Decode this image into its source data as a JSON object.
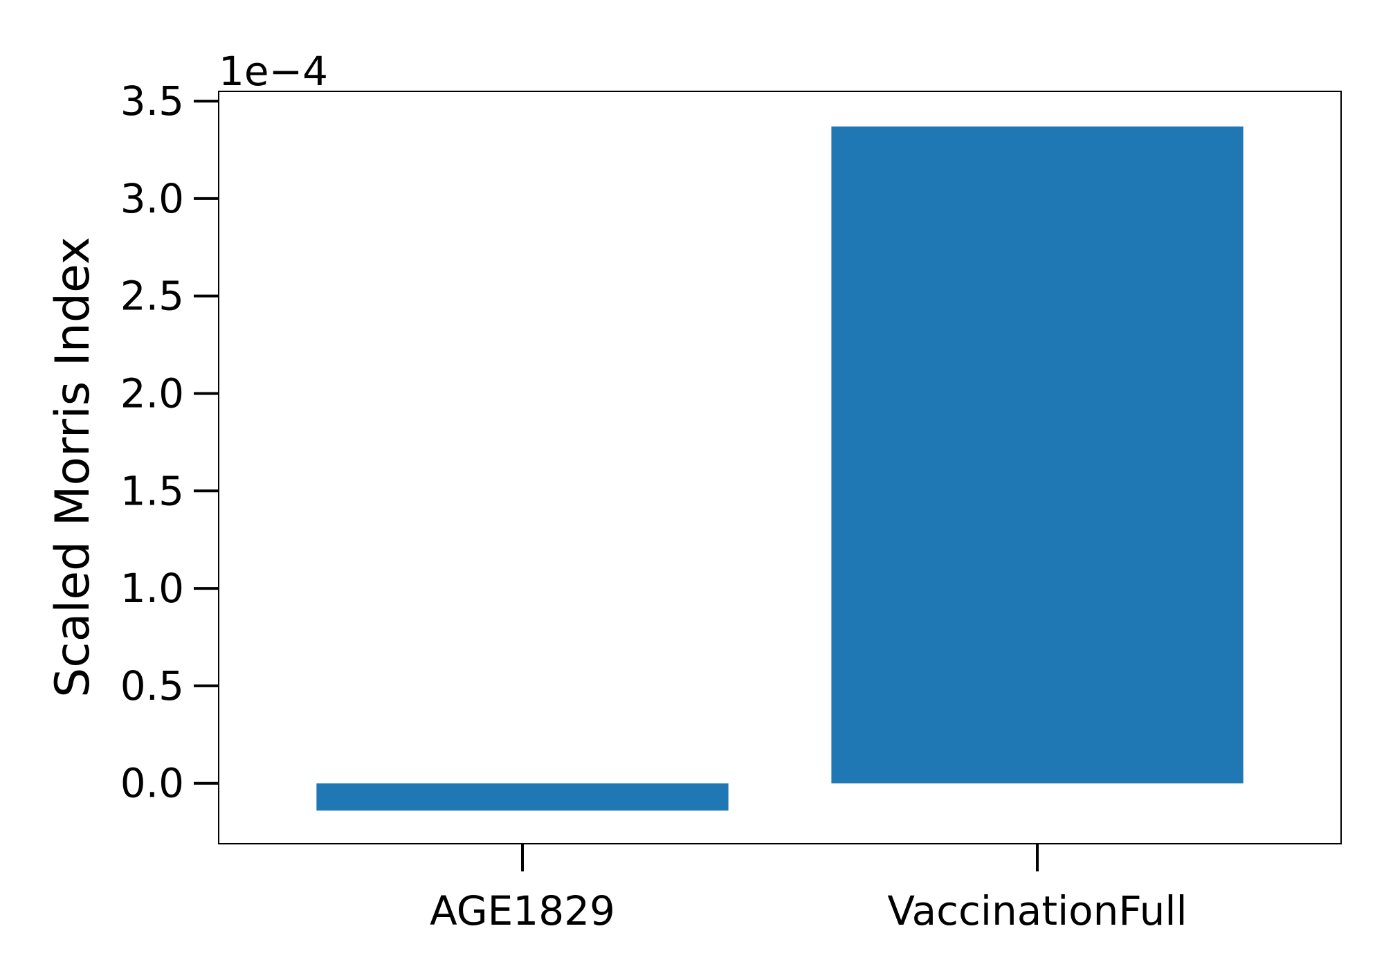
{
  "chart_data": {
    "type": "bar",
    "categories": [
      "AGE1829",
      "VaccinationFull"
    ],
    "values": [
      -0.14,
      3.37
    ],
    "value_multiplier_label": "1e−4",
    "ylabel": "Scaled Morris Index",
    "xlabel": "",
    "title": "",
    "ylim": [
      -0.31,
      3.55
    ],
    "yticks": [
      0.0,
      0.5,
      1.0,
      1.5,
      2.0,
      2.5,
      3.0,
      3.5
    ],
    "ytick_labels": [
      "0.0",
      "0.5",
      "1.0",
      "1.5",
      "2.0",
      "2.5",
      "3.0",
      "3.5"
    ],
    "bar_color": "#1f77b4",
    "grid": false,
    "legend": "none"
  }
}
